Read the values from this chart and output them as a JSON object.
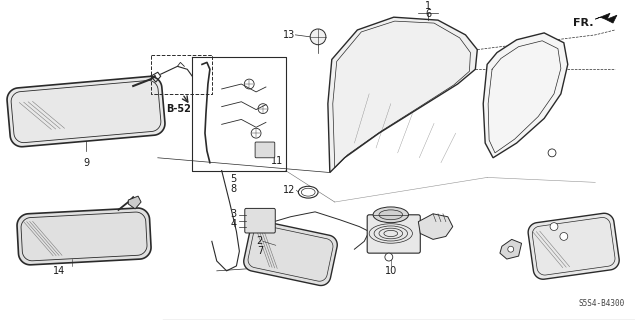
{
  "bg_color": "#ffffff",
  "line_color": "#2a2a2a",
  "label_color": "#1a1a1a",
  "fig_width": 6.4,
  "fig_height": 3.2,
  "dpi": 100,
  "corner_label": "S5S4-B4300",
  "fr_label": "FR."
}
